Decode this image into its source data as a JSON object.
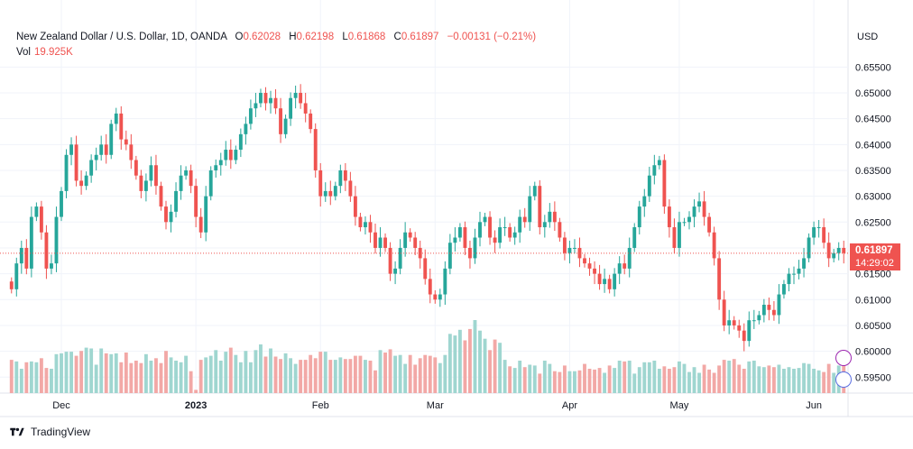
{
  "header": {
    "symbol": "New Zealand Dollar / U.S. Dollar, 1D, OANDA",
    "open_label": "O",
    "open": "0.62028",
    "high_label": "H",
    "high": "0.62198",
    "low_label": "L",
    "low": "0.61868",
    "close_label": "C",
    "close": "0.61897",
    "change": "−0.00131 (−0.21%)"
  },
  "volume": {
    "label": "Vol",
    "value": "19.925K"
  },
  "currency": "USD",
  "last_price": {
    "price": "0.61897",
    "countdown": "14:29:02"
  },
  "footer": {
    "brand": "TradingView",
    "logo_icon": "tradingview-logo-icon"
  },
  "colors": {
    "up": "#26a69a",
    "down": "#ef5350",
    "up_vol": "#9fd6d0",
    "down_vol": "#f2a8a6"
  },
  "chart_data": {
    "type": "candlestick",
    "y_axis_ticks": [
      "0.65500",
      "0.65000",
      "0.64500",
      "0.64000",
      "0.63500",
      "0.63000",
      "0.62500",
      "0.62000",
      "0.61500",
      "0.61000",
      "0.60500",
      "0.60000",
      "0.59500"
    ],
    "ylim": [
      0.594,
      0.6575
    ],
    "x_axis_labels": [
      "Dec",
      "2023",
      "Feb",
      "Mar",
      "Apr",
      "May",
      "Jun"
    ],
    "last_price": 0.61897,
    "closes": [
      0.612,
      0.617,
      0.62,
      0.616,
      0.626,
      0.628,
      0.623,
      0.616,
      0.617,
      0.626,
      0.631,
      0.638,
      0.64,
      0.633,
      0.632,
      0.634,
      0.637,
      0.638,
      0.64,
      0.638,
      0.644,
      0.646,
      0.641,
      0.64,
      0.637,
      0.634,
      0.631,
      0.633,
      0.636,
      0.632,
      0.628,
      0.625,
      0.627,
      0.631,
      0.634,
      0.635,
      0.632,
      0.626,
      0.623,
      0.63,
      0.635,
      0.636,
      0.637,
      0.639,
      0.637,
      0.639,
      0.642,
      0.644,
      0.647,
      0.648,
      0.65,
      0.648,
      0.649,
      0.647,
      0.642,
      0.645,
      0.649,
      0.65,
      0.648,
      0.646,
      0.643,
      0.635,
      0.63,
      0.631,
      0.63,
      0.632,
      0.635,
      0.633,
      0.63,
      0.626,
      0.624,
      0.625,
      0.623,
      0.62,
      0.622,
      0.62,
      0.615,
      0.616,
      0.62,
      0.623,
      0.622,
      0.62,
      0.618,
      0.614,
      0.611,
      0.61,
      0.611,
      0.616,
      0.621,
      0.622,
      0.624,
      0.62,
      0.618,
      0.622,
      0.625,
      0.626,
      0.622,
      0.621,
      0.624,
      0.624,
      0.622,
      0.623,
      0.626,
      0.625,
      0.63,
      0.632,
      0.624,
      0.625,
      0.627,
      0.625,
      0.622,
      0.619,
      0.62,
      0.62,
      0.618,
      0.617,
      0.616,
      0.615,
      0.613,
      0.614,
      0.612,
      0.615,
      0.617,
      0.616,
      0.62,
      0.624,
      0.628,
      0.63,
      0.634,
      0.636,
      0.637,
      0.628,
      0.624,
      0.62,
      0.625,
      0.625,
      0.626,
      0.628,
      0.629,
      0.626,
      0.623,
      0.618,
      0.61,
      0.605,
      0.606,
      0.605,
      0.604,
      0.602,
      0.606,
      0.606,
      0.607,
      0.609,
      0.608,
      0.607,
      0.611,
      0.613,
      0.615,
      0.615,
      0.616,
      0.618,
      0.622,
      0.624,
      0.624,
      0.621,
      0.618,
      0.619,
      0.62,
      0.619
    ],
    "volumes_relative": [
      0.41,
      0.39,
      0.3,
      0.38,
      0.39,
      0.38,
      0.43,
      0.31,
      0.3,
      0.48,
      0.49,
      0.51,
      0.51,
      0.46,
      0.52,
      0.56,
      0.55,
      0.35,
      0.55,
      0.49,
      0.48,
      0.49,
      0.38,
      0.5,
      0.37,
      0.4,
      0.37,
      0.48,
      0.4,
      0.43,
      0.37,
      0.52,
      0.44,
      0.4,
      0.38,
      0.46,
      0.27,
      0.04,
      0.41,
      0.44,
      0.46,
      0.53,
      0.4,
      0.51,
      0.56,
      0.47,
      0.38,
      0.52,
      0.38,
      0.53,
      0.6,
      0.45,
      0.55,
      0.45,
      0.42,
      0.49,
      0.43,
      0.36,
      0.41,
      0.41,
      0.47,
      0.43,
      0.51,
      0.51,
      0.41,
      0.41,
      0.44,
      0.42,
      0.42,
      0.46,
      0.46,
      0.41,
      0.4,
      0.28,
      0.53,
      0.5,
      0.54,
      0.46,
      0.47,
      0.36,
      0.47,
      0.35,
      0.43,
      0.47,
      0.46,
      0.44,
      0.37,
      0.47,
      0.73,
      0.71,
      0.78,
      0.65,
      0.79,
      0.9,
      0.77,
      0.67,
      0.53,
      0.66,
      0.62,
      0.41,
      0.33,
      0.31,
      0.4,
      0.32,
      0.35,
      0.34,
      0.24,
      0.4,
      0.36,
      0.27,
      0.26,
      0.34,
      0.27,
      0.27,
      0.28,
      0.36,
      0.3,
      0.29,
      0.31,
      0.25,
      0.34,
      0.31,
      0.4,
      0.39,
      0.4,
      0.24,
      0.32,
      0.38,
      0.38,
      0.4,
      0.3,
      0.33,
      0.3,
      0.32,
      0.39,
      0.36,
      0.26,
      0.32,
      0.25,
      0.35,
      0.29,
      0.25,
      0.34,
      0.41,
      0.4,
      0.42,
      0.35,
      0.3,
      0.39,
      0.4,
      0.33,
      0.32,
      0.34,
      0.32,
      0.35,
      0.3,
      0.32,
      0.3,
      0.31,
      0.37,
      0.36,
      0.3,
      0.28,
      0.26,
      0.36,
      0.25,
      0.34,
      0.38,
      0.27,
      0.39,
      0.35,
      0.32,
      0.38,
      0.35
    ],
    "grid": true,
    "legend": "top-left"
  }
}
